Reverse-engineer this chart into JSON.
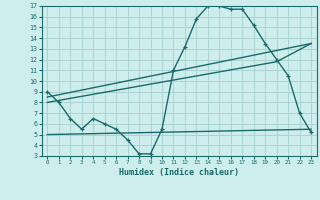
{
  "xlabel": "Humidex (Indice chaleur)",
  "bg_color": "#ceeeed",
  "grid_color": "#aad4d3",
  "line_color": "#1a6b6b",
  "xlim": [
    -0.5,
    23.5
  ],
  "ylim": [
    3,
    17
  ],
  "xticks": [
    0,
    1,
    2,
    3,
    4,
    5,
    6,
    7,
    8,
    9,
    10,
    11,
    12,
    13,
    14,
    15,
    16,
    17,
    18,
    19,
    20,
    21,
    22,
    23
  ],
  "yticks": [
    3,
    4,
    5,
    6,
    7,
    8,
    9,
    10,
    11,
    12,
    13,
    14,
    15,
    16,
    17
  ],
  "line1_x": [
    0,
    1,
    2,
    3,
    4,
    5,
    6,
    7,
    8,
    9,
    10,
    11,
    12,
    13,
    14,
    15,
    16,
    17,
    18,
    19,
    20,
    21,
    22,
    23
  ],
  "line1_y": [
    9.0,
    8.0,
    6.5,
    5.5,
    6.5,
    6.0,
    5.5,
    4.5,
    3.2,
    3.2,
    5.5,
    11.0,
    13.2,
    15.8,
    17.0,
    17.0,
    16.7,
    16.7,
    15.2,
    13.5,
    12.0,
    10.5,
    7.0,
    5.2
  ],
  "line2_x": [
    0,
    23
  ],
  "line2_y": [
    8.5,
    13.5
  ],
  "line3_x": [
    0,
    23
  ],
  "line3_y": [
    5.0,
    5.5
  ],
  "line4_x": [
    0,
    20,
    23
  ],
  "line4_y": [
    8.0,
    11.8,
    13.5
  ]
}
